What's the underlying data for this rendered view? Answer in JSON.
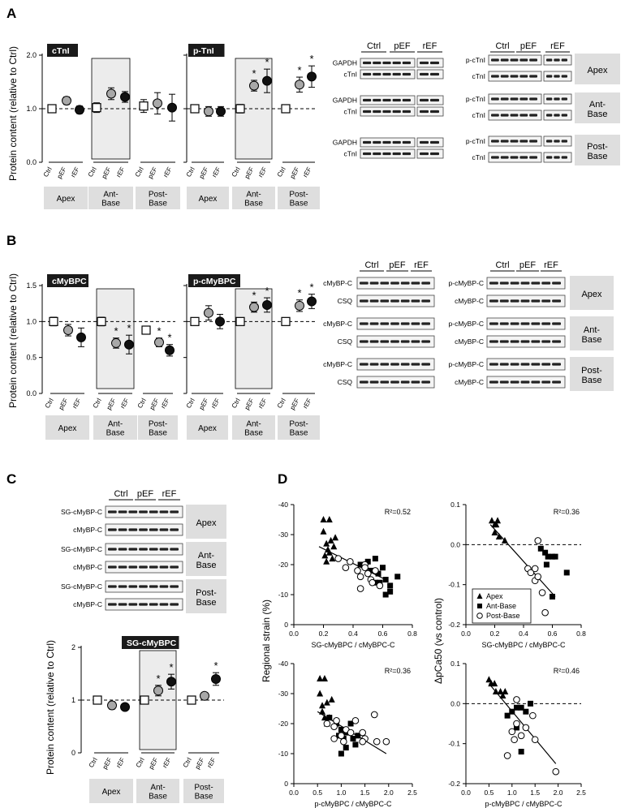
{
  "palette": {
    "ctrl": "#ffffff",
    "pef": "#a8a8a8",
    "ref": "#111111",
    "shade": "#ececec",
    "box": "#dedede",
    "band": "#1a1a1a"
  },
  "labels": {
    "panels": {
      "A": "A",
      "B": "B",
      "C": "C",
      "D": "D"
    },
    "ylabel": "Protein content (relative to Ctrl)",
    "groups": [
      "Ctrl",
      "pEF",
      "rEF"
    ],
    "regions": [
      "Apex",
      "Ant-\nBase",
      "Post-\nBase"
    ],
    "star": "*"
  },
  "chart_data": [
    {
      "id": "A-cTnI",
      "type": "scatter",
      "title": "cTnI",
      "ylim": [
        0,
        2.0
      ],
      "yticks": [
        "0.0",
        "1.0",
        "2.0"
      ],
      "ref_line": 1.0,
      "groups": [
        "Ctrl",
        "pEF",
        "rEF"
      ],
      "regions": [
        "Apex",
        "Ant-Base",
        "Post-Base"
      ],
      "series": [
        {
          "region": "Apex",
          "values": [
            1.0,
            1.15,
            0.98
          ],
          "err": [
            0.06,
            0.07,
            0.07
          ],
          "stars": [
            0,
            0,
            0
          ]
        },
        {
          "region": "Ant-Base",
          "values": [
            1.02,
            1.28,
            1.22
          ],
          "err": [
            0.09,
            0.11,
            0.1
          ],
          "stars": [
            0,
            0,
            0
          ]
        },
        {
          "region": "Post-Base",
          "values": [
            1.05,
            1.1,
            1.02
          ],
          "err": [
            0.12,
            0.2,
            0.25
          ],
          "stars": [
            0,
            0,
            0
          ]
        }
      ]
    },
    {
      "id": "A-pTnI",
      "type": "scatter",
      "title": "p-TnI",
      "ylim": [
        0,
        2.0
      ],
      "yticks": [],
      "ref_line": 1.0,
      "groups": [
        "Ctrl",
        "pEF",
        "rEF"
      ],
      "regions": [
        "Apex",
        "Ant-Base",
        "Post-Base"
      ],
      "series": [
        {
          "region": "Apex",
          "values": [
            1.0,
            0.95,
            0.95
          ],
          "err": [
            0.06,
            0.09,
            0.09
          ],
          "stars": [
            0,
            0,
            0
          ]
        },
        {
          "region": "Ant-Base",
          "values": [
            1.0,
            1.43,
            1.52
          ],
          "err": [
            0.08,
            0.1,
            0.22
          ],
          "stars": [
            0,
            1,
            1
          ]
        },
        {
          "region": "Post-Base",
          "values": [
            1.0,
            1.45,
            1.6
          ],
          "err": [
            0.04,
            0.14,
            0.2
          ],
          "stars": [
            0,
            1,
            1
          ]
        }
      ]
    },
    {
      "id": "B-cMyBPC",
      "type": "scatter",
      "title": "cMyBPC",
      "ylim": [
        0,
        1.5
      ],
      "yticks": [
        "0.0",
        "0.5",
        "1.0",
        "1.5"
      ],
      "ref_line": 1.0,
      "groups": [
        "Ctrl",
        "pEF",
        "rEF"
      ],
      "regions": [
        "Apex",
        "Ant-Base",
        "Post-Base"
      ],
      "series": [
        {
          "region": "Apex",
          "values": [
            1.0,
            0.88,
            0.78
          ],
          "err": [
            0.06,
            0.08,
            0.13
          ],
          "stars": [
            0,
            0,
            0
          ]
        },
        {
          "region": "Ant-Base",
          "values": [
            1.0,
            0.7,
            0.68
          ],
          "err": [
            0.06,
            0.07,
            0.13
          ],
          "stars": [
            0,
            1,
            1
          ]
        },
        {
          "region": "Post-Base",
          "values": [
            0.88,
            0.71,
            0.6
          ],
          "err": [
            0.05,
            0.06,
            0.08
          ],
          "stars": [
            0,
            1,
            1
          ]
        }
      ]
    },
    {
      "id": "B-pcMyBPC",
      "type": "scatter",
      "title": "p-cMyBPC",
      "ylim": [
        0,
        1.5
      ],
      "yticks": [],
      "ref_line": 1.0,
      "groups": [
        "Ctrl",
        "pEF",
        "rEF"
      ],
      "regions": [
        "Apex",
        "Ant-Base",
        "Post-Base"
      ],
      "series": [
        {
          "region": "Apex",
          "values": [
            1.0,
            1.12,
            1.0
          ],
          "err": [
            0.04,
            0.1,
            0.1
          ],
          "stars": [
            0,
            0,
            0
          ]
        },
        {
          "region": "Ant-Base",
          "values": [
            1.0,
            1.2,
            1.23
          ],
          "err": [
            0.04,
            0.07,
            0.1
          ],
          "stars": [
            0,
            1,
            1
          ]
        },
        {
          "region": "Post-Base",
          "values": [
            1.0,
            1.22,
            1.28
          ],
          "err": [
            0.04,
            0.08,
            0.1
          ],
          "stars": [
            0,
            1,
            1
          ]
        }
      ]
    },
    {
      "id": "C-SGcMyBPC",
      "type": "scatter",
      "title": "SG-cMyBPC",
      "ylim": [
        0,
        2
      ],
      "yticks": [
        "0",
        "1",
        "2"
      ],
      "ref_line": 1.0,
      "groups": [
        "Ctrl",
        "pEF",
        "rEF"
      ],
      "regions": [
        "Apex",
        "Ant-Base",
        "Post-Base"
      ],
      "series": [
        {
          "region": "Apex",
          "values": [
            1.0,
            0.9,
            0.87
          ],
          "err": [
            0.06,
            0.07,
            0.06
          ],
          "stars": [
            0,
            0,
            0
          ]
        },
        {
          "region": "Ant-Base",
          "values": [
            1.0,
            1.18,
            1.35
          ],
          "err": [
            0.05,
            0.1,
            0.14
          ],
          "stars": [
            0,
            1,
            1
          ]
        },
        {
          "region": "Post-Base",
          "values": [
            1.0,
            1.08,
            1.4
          ],
          "err": [
            0.04,
            0.06,
            0.12
          ],
          "stars": [
            0,
            0,
            1
          ]
        }
      ]
    },
    {
      "id": "D1",
      "type": "scatter",
      "xlabel": "SG-cMyBPC / cMyBPC-C",
      "ylabel": "Regional strain (%)",
      "r2": "R²=0.52",
      "xlim": [
        0,
        0.8
      ],
      "ylim": [
        0,
        -40
      ],
      "xticks": [
        "0.0",
        "0.2",
        "0.4",
        "0.6",
        "0.8"
      ],
      "yticks": [
        "0",
        "-10",
        "-20",
        "-30",
        "-40"
      ],
      "fit": [
        [
          0.17,
          -26
        ],
        [
          0.62,
          -15
        ]
      ],
      "apex": [
        [
          0.2,
          -35
        ],
        [
          0.24,
          -35
        ],
        [
          0.2,
          -31
        ],
        [
          0.25,
          -28
        ],
        [
          0.22,
          -27
        ],
        [
          0.27,
          -26
        ],
        [
          0.23,
          -25
        ],
        [
          0.21,
          -23
        ],
        [
          0.22,
          -21
        ],
        [
          0.26,
          -22
        ],
        [
          0.24,
          -24
        ],
        [
          0.28,
          -29
        ]
      ],
      "antbase": [
        [
          0.45,
          -20
        ],
        [
          0.5,
          -21
        ],
        [
          0.55,
          -22
        ],
        [
          0.52,
          -18
        ],
        [
          0.57,
          -17
        ],
        [
          0.6,
          -19
        ],
        [
          0.62,
          -15
        ],
        [
          0.65,
          -13
        ],
        [
          0.58,
          -14
        ],
        [
          0.62,
          -10
        ],
        [
          0.65,
          -11
        ],
        [
          0.7,
          -16
        ],
        [
          0.55,
          -14
        ]
      ],
      "postbase": [
        [
          0.3,
          -22
        ],
        [
          0.35,
          -19
        ],
        [
          0.38,
          -21
        ],
        [
          0.43,
          -18
        ],
        [
          0.45,
          -16
        ],
        [
          0.48,
          -20
        ],
        [
          0.5,
          -17
        ],
        [
          0.52,
          -15
        ],
        [
          0.53,
          -14
        ],
        [
          0.45,
          -12
        ],
        [
          0.55,
          -18
        ],
        [
          0.58,
          -13
        ],
        [
          0.48,
          -19
        ]
      ]
    },
    {
      "id": "D2",
      "type": "scatter",
      "xlabel": "SG-cMyBPC / cMyBPC-C",
      "ylabel": "ΔpCa50 (vs control)",
      "r2": "R²=0.36",
      "xlim": [
        0,
        0.8
      ],
      "ylim": [
        -0.2,
        0.1
      ],
      "xticks": [
        "0.0",
        "0.2",
        "0.4",
        "0.6",
        "0.8"
      ],
      "yticks": [
        "0.1",
        "0.0",
        "-0.1",
        "-0.2"
      ],
      "ref_line": 0,
      "fit": [
        [
          0.17,
          0.05
        ],
        [
          0.62,
          -0.13
        ]
      ],
      "legend": [
        "Apex",
        "Ant-Base",
        "Post-Base"
      ],
      "apex": [
        [
          0.18,
          0.06
        ],
        [
          0.2,
          0.05
        ],
        [
          0.22,
          0.06
        ],
        [
          0.2,
          0.03
        ],
        [
          0.23,
          0.02
        ],
        [
          0.27,
          0.01
        ],
        [
          0.21,
          0.05
        ]
      ],
      "antbase": [
        [
          0.52,
          -0.01
        ],
        [
          0.55,
          -0.02
        ],
        [
          0.57,
          -0.03
        ],
        [
          0.6,
          -0.03
        ],
        [
          0.62,
          -0.03
        ],
        [
          0.56,
          -0.05
        ],
        [
          0.7,
          -0.07
        ],
        [
          0.6,
          -0.13
        ]
      ],
      "postbase": [
        [
          0.33,
          -0.13
        ],
        [
          0.43,
          -0.06
        ],
        [
          0.45,
          -0.07
        ],
        [
          0.48,
          -0.09
        ],
        [
          0.5,
          0.01
        ],
        [
          0.5,
          -0.08
        ],
        [
          0.53,
          -0.12
        ],
        [
          0.55,
          -0.17
        ],
        [
          0.48,
          -0.06
        ]
      ]
    },
    {
      "id": "D3",
      "type": "scatter",
      "xlabel": "p-cMyBPC / cMyBPC-C",
      "ylabel": "Regional strain (%)",
      "r2": "R²=0.36",
      "xlim": [
        0,
        2.5
      ],
      "ylim": [
        0,
        -40
      ],
      "xticks": [
        "0.0",
        "0.5",
        "1.0",
        "1.5",
        "2.0",
        "2.5"
      ],
      "yticks": [
        "0",
        "-10",
        "-20",
        "-30",
        "-40"
      ],
      "fit": [
        [
          0.5,
          -24
        ],
        [
          1.95,
          -10
        ]
      ],
      "apex": [
        [
          0.55,
          -35
        ],
        [
          0.65,
          -35
        ],
        [
          0.55,
          -30
        ],
        [
          0.7,
          -27
        ],
        [
          0.6,
          -26
        ],
        [
          0.75,
          -22
        ],
        [
          0.65,
          -22
        ],
        [
          0.8,
          -28
        ],
        [
          0.7,
          -20
        ],
        [
          0.6,
          -24
        ]
      ],
      "antbase": [
        [
          0.75,
          -22
        ],
        [
          0.9,
          -20
        ],
        [
          1.0,
          -18
        ],
        [
          1.1,
          -17
        ],
        [
          0.95,
          -16
        ],
        [
          1.05,
          -15
        ],
        [
          1.2,
          -20
        ],
        [
          1.25,
          -15
        ],
        [
          1.1,
          -12
        ],
        [
          1.0,
          -10
        ],
        [
          1.3,
          -13
        ],
        [
          1.35,
          -16
        ]
      ],
      "postbase": [
        [
          0.7,
          -20
        ],
        [
          0.85,
          -19
        ],
        [
          0.9,
          -21
        ],
        [
          1.0,
          -16
        ],
        [
          1.05,
          -14
        ],
        [
          1.1,
          -18
        ],
        [
          1.2,
          -17
        ],
        [
          1.3,
          -21
        ],
        [
          1.45,
          -17
        ],
        [
          1.5,
          -15
        ],
        [
          1.75,
          -14
        ],
        [
          1.95,
          -14
        ],
        [
          1.45,
          -14
        ],
        [
          1.7,
          -23
        ],
        [
          0.85,
          -15
        ]
      ]
    },
    {
      "id": "D4",
      "type": "scatter",
      "xlabel": "p-cMyBPC / cMyBPC-C",
      "ylabel": "ΔpCa50 (vs control)",
      "r2": "R²=0.46",
      "xlim": [
        0,
        2.5
      ],
      "ylim": [
        -0.2,
        0.1
      ],
      "xticks": [
        "0.0",
        "0.5",
        "1.0",
        "1.5",
        "2.0",
        "2.5"
      ],
      "yticks": [
        "0.1",
        "0.0",
        "-0.1",
        "-0.2"
      ],
      "ref_line": 0,
      "fit": [
        [
          0.5,
          0.05
        ],
        [
          1.95,
          -0.15
        ]
      ],
      "apex": [
        [
          0.5,
          0.06
        ],
        [
          0.62,
          0.05
        ],
        [
          0.65,
          0.03
        ],
        [
          0.75,
          0.03
        ],
        [
          0.8,
          0.02
        ],
        [
          0.85,
          0.03
        ],
        [
          0.55,
          0.05
        ]
      ],
      "antbase": [
        [
          0.9,
          -0.03
        ],
        [
          1.0,
          -0.02
        ],
        [
          1.1,
          -0.01
        ],
        [
          1.2,
          -0.01
        ],
        [
          1.3,
          -0.02
        ],
        [
          1.4,
          -0.0
        ],
        [
          1.1,
          -0.06
        ],
        [
          1.2,
          -0.12
        ]
      ],
      "postbase": [
        [
          0.9,
          -0.13
        ],
        [
          1.0,
          -0.07
        ],
        [
          1.05,
          -0.09
        ],
        [
          1.1,
          -0.05
        ],
        [
          1.1,
          0.01
        ],
        [
          1.2,
          -0.08
        ],
        [
          1.3,
          -0.06
        ],
        [
          1.45,
          -0.03
        ],
        [
          1.5,
          -0.09
        ],
        [
          1.95,
          -0.17
        ]
      ]
    }
  ],
  "blots": {
    "A1": {
      "groups": [
        "Ctrl",
        "pEF",
        "rEF"
      ],
      "rows": [
        [
          "GAPDH",
          "cTnI"
        ],
        [
          "GAPDH",
          "cTnI"
        ],
        [
          "GAPDH",
          "cTnI"
        ]
      ]
    },
    "A2": {
      "groups": [
        "Ctrl",
        "pEF",
        "rEF"
      ],
      "rows": [
        [
          "p-cTnI",
          "cTnI"
        ],
        [
          "p-cTnI",
          "cTnI"
        ],
        [
          "p-cTnI",
          "cTnI"
        ]
      ],
      "regions": [
        "Apex",
        "Ant-\nBase",
        "Post-\nBase"
      ]
    },
    "B1": {
      "groups": [
        "Ctrl",
        "pEF",
        "rEF"
      ],
      "rows": [
        [
          "cMyBP-C",
          "CSQ"
        ],
        [
          "cMyBP-C",
          "CSQ"
        ],
        [
          "cMyBP-C",
          "CSQ"
        ]
      ]
    },
    "B2": {
      "groups": [
        "Ctrl",
        "pEF",
        "rEF"
      ],
      "rows": [
        [
          "p-cMyBP-C",
          "cMyBP-C"
        ],
        [
          "p-cMyBP-C",
          "cMyBP-C"
        ],
        [
          "p-cMyBP-C",
          "cMyBP-C"
        ]
      ],
      "regions": [
        "Apex",
        "Ant-\nBase",
        "Post-\nBase"
      ]
    },
    "C": {
      "groups": [
        "Ctrl",
        "pEF",
        "rEF"
      ],
      "rows": [
        [
          "SG-cMyBP-C",
          "cMyBP-C"
        ],
        [
          "SG-cMyBP-C",
          "cMyBP-C"
        ],
        [
          "SG-cMyBP-C",
          "cMyBP-C"
        ]
      ],
      "regions": [
        "Apex",
        "Ant-\nBase",
        "Post-\nBase"
      ]
    }
  }
}
